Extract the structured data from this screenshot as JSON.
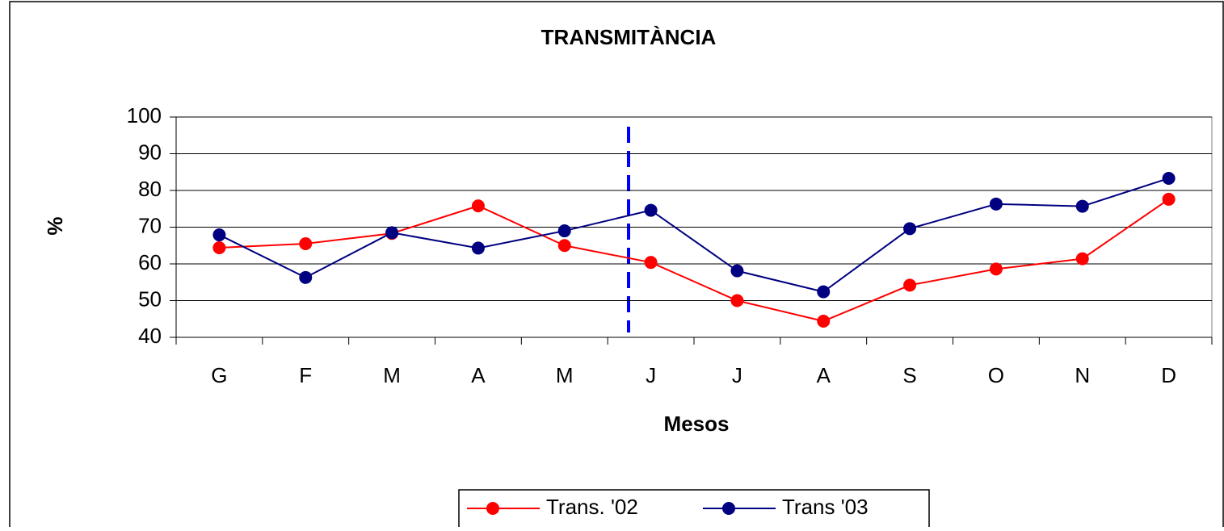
{
  "chart_data": {
    "type": "line",
    "title": "TRANSMITÀNCIA",
    "x_label": "Mesos",
    "y_label": "%",
    "categories": [
      "G",
      "F",
      "M",
      "A",
      "M",
      "J",
      "J",
      "A",
      "S",
      "O",
      "N",
      "D"
    ],
    "series": [
      {
        "name": "Trans. '02",
        "color": "#ff0000",
        "values": [
          64.4,
          65.5,
          68.3,
          75.8,
          65,
          60.4,
          50,
          44.4,
          54.2,
          58.6,
          61.4,
          77.6
        ]
      },
      {
        "name": "Trans '03",
        "color": "#000080",
        "values": [
          67.9,
          56.3,
          68.5,
          64.3,
          69,
          74.6,
          58.1,
          52.4,
          69.6,
          76.3,
          75.7,
          83.3
        ]
      }
    ],
    "ylim": [
      40,
      100
    ],
    "yticks": [
      40,
      50,
      60,
      70,
      80,
      90,
      100
    ],
    "grid": true,
    "legend": "bottom"
  }
}
